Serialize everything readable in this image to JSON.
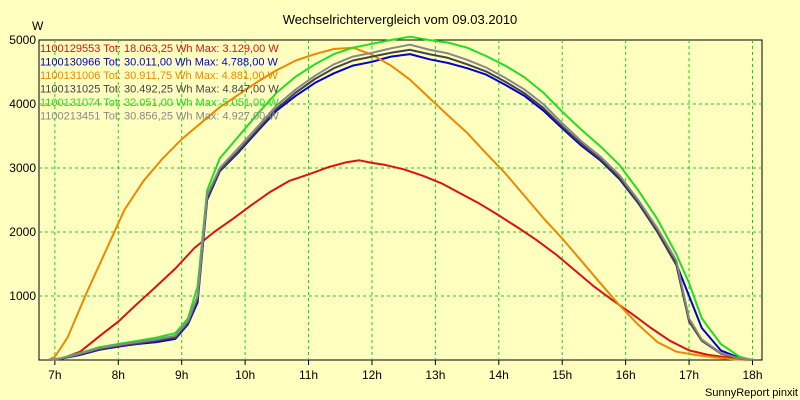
{
  "chart_data": {
    "type": "line",
    "title": "Wechselrichtervergleich vom 09.03.2010",
    "ylabel": "W",
    "xlabel": "",
    "footer": "SunnyReport pinxit",
    "xlim": [
      6.75,
      18.15
    ],
    "ylim": [
      0,
      5000
    ],
    "x_ticks": [
      7,
      8,
      9,
      10,
      11,
      12,
      13,
      14,
      15,
      16,
      17,
      18
    ],
    "x_tick_labels": [
      "7h",
      "8h",
      "9h",
      "10h",
      "11h",
      "12h",
      "13h",
      "14h",
      "15h",
      "16h",
      "17h",
      "18h"
    ],
    "y_ticks": [
      1000,
      2000,
      3000,
      4000,
      5000
    ],
    "y_tick_labels": [
      "1000",
      "2000",
      "3000",
      "4000",
      "5000"
    ],
    "grid": true,
    "legend_position": "top-left",
    "series": [
      {
        "name": "1100129553",
        "legend": "1100129553 Tot: 18.063,25 Wh Max: 3.129,00 W",
        "color": "#dd1111",
        "x": [
          6.9,
          7.1,
          7.4,
          7.7,
          8.0,
          8.3,
          8.6,
          8.9,
          9.2,
          9.5,
          9.8,
          10.1,
          10.4,
          10.7,
          11.0,
          11.3,
          11.6,
          11.8,
          12.0,
          12.2,
          12.5,
          12.8,
          13.1,
          13.4,
          13.7,
          14.0,
          14.3,
          14.6,
          14.9,
          15.2,
          15.5,
          15.8,
          16.1,
          16.4,
          16.7,
          17.0,
          17.3,
          17.6,
          17.9,
          18.0
        ],
        "y": [
          0,
          20,
          130,
          370,
          600,
          880,
          1150,
          1430,
          1750,
          1990,
          2200,
          2420,
          2630,
          2800,
          2900,
          3010,
          3090,
          3120,
          3080,
          3050,
          2980,
          2880,
          2760,
          2600,
          2440,
          2260,
          2070,
          1870,
          1650,
          1400,
          1150,
          930,
          720,
          500,
          300,
          150,
          80,
          40,
          10,
          0
        ]
      },
      {
        "name": "1100130966",
        "legend": "1100130966 Tot: 30.011,00 Wh Max: 4.788,00 W",
        "color": "#0000cc",
        "x": [
          6.9,
          7.1,
          7.4,
          7.7,
          8.0,
          8.3,
          8.6,
          8.9,
          9.1,
          9.25,
          9.4,
          9.6,
          9.9,
          10.2,
          10.5,
          10.8,
          11.1,
          11.4,
          11.7,
          12.0,
          12.3,
          12.6,
          12.9,
          13.2,
          13.5,
          13.8,
          14.1,
          14.4,
          14.7,
          15.0,
          15.3,
          15.6,
          15.9,
          16.2,
          16.5,
          16.8,
          17.0,
          17.2,
          17.5,
          17.8,
          18.0
        ],
        "y": [
          0,
          20,
          80,
          160,
          210,
          250,
          280,
          330,
          560,
          900,
          2500,
          2950,
          3250,
          3580,
          3900,
          4130,
          4330,
          4480,
          4600,
          4660,
          4740,
          4780,
          4700,
          4640,
          4560,
          4460,
          4300,
          4130,
          3900,
          3620,
          3350,
          3120,
          2830,
          2450,
          2000,
          1500,
          1000,
          500,
          150,
          30,
          0
        ]
      },
      {
        "name": "1100131006",
        "legend": "1100131006 Tot: 30.911,75 Wh Max: 4.881,00 W",
        "color": "#ee8800",
        "x": [
          6.9,
          7.0,
          7.2,
          7.5,
          7.8,
          8.1,
          8.4,
          8.7,
          9.0,
          9.3,
          9.6,
          9.9,
          10.2,
          10.5,
          10.8,
          11.1,
          11.4,
          11.7,
          12.0,
          12.3,
          12.6,
          12.9,
          13.2,
          13.5,
          13.8,
          14.1,
          14.4,
          14.7,
          15.0,
          15.3,
          15.6,
          15.9,
          16.2,
          16.5,
          16.8,
          17.1,
          17.4,
          17.7,
          18.0
        ],
        "y": [
          0,
          50,
          350,
          1050,
          1700,
          2350,
          2800,
          3150,
          3450,
          3700,
          3950,
          4150,
          4350,
          4530,
          4680,
          4780,
          4860,
          4880,
          4770,
          4600,
          4380,
          4100,
          3820,
          3550,
          3230,
          2920,
          2570,
          2220,
          1900,
          1550,
          1200,
          860,
          550,
          280,
          130,
          80,
          40,
          10,
          0
        ]
      },
      {
        "name": "1100131025",
        "legend": "1100131025 Tot: 30.492,25 Wh Max: 4.847,00 W",
        "color": "#444444",
        "x": [
          6.9,
          7.1,
          7.4,
          7.7,
          8.0,
          8.3,
          8.6,
          8.9,
          9.1,
          9.25,
          9.4,
          9.6,
          9.9,
          10.2,
          10.5,
          10.8,
          11.1,
          11.4,
          11.7,
          12.0,
          12.3,
          12.6,
          12.9,
          13.2,
          13.5,
          13.8,
          14.1,
          14.4,
          14.7,
          15.0,
          15.3,
          15.6,
          15.9,
          16.2,
          16.5,
          16.8,
          17.0,
          17.2,
          17.5,
          17.8,
          18.0
        ],
        "y": [
          0,
          20,
          90,
          170,
          220,
          260,
          300,
          350,
          580,
          950,
          2520,
          2960,
          3270,
          3600,
          3930,
          4180,
          4390,
          4560,
          4680,
          4740,
          4800,
          4847,
          4780,
          4720,
          4620,
          4510,
          4350,
          4170,
          3940,
          3650,
          3380,
          3140,
          2850,
          2460,
          2000,
          1480,
          600,
          300,
          100,
          20,
          0
        ]
      },
      {
        "name": "1100131074",
        "legend": "1100131074 Tot: 32.051,00 Wh Max: 5.051,00 W",
        "color": "#22dd22",
        "x": [
          6.9,
          7.1,
          7.4,
          7.7,
          8.0,
          8.3,
          8.6,
          8.9,
          9.1,
          9.25,
          9.4,
          9.6,
          9.9,
          10.2,
          10.5,
          10.8,
          11.1,
          11.4,
          11.7,
          12.0,
          12.3,
          12.6,
          12.9,
          13.2,
          13.5,
          13.8,
          14.1,
          14.4,
          14.7,
          15.0,
          15.3,
          15.6,
          15.9,
          16.2,
          16.5,
          16.8,
          17.0,
          17.2,
          17.5,
          17.8,
          18.0
        ],
        "y": [
          0,
          30,
          110,
          200,
          250,
          300,
          350,
          420,
          650,
          1150,
          2650,
          3150,
          3500,
          3850,
          4180,
          4430,
          4620,
          4780,
          4880,
          4940,
          5000,
          5051,
          5000,
          4960,
          4880,
          4750,
          4600,
          4420,
          4180,
          3880,
          3600,
          3340,
          3050,
          2650,
          2200,
          1650,
          1200,
          650,
          250,
          50,
          0
        ]
      },
      {
        "name": "1100213451",
        "legend": "1100213451 Tot: 30.856,25 Wh Max: 4.927,00 W",
        "color": "#888888",
        "x": [
          6.9,
          7.1,
          7.4,
          7.7,
          8.0,
          8.3,
          8.6,
          8.9,
          9.1,
          9.25,
          9.4,
          9.6,
          9.9,
          10.2,
          10.5,
          10.8,
          11.1,
          11.4,
          11.7,
          12.0,
          12.3,
          12.6,
          12.9,
          13.2,
          13.5,
          13.8,
          14.1,
          14.4,
          14.7,
          15.0,
          15.3,
          15.6,
          15.9,
          16.2,
          16.5,
          16.8,
          17.0,
          17.2,
          17.5,
          17.8,
          18.0
        ],
        "y": [
          0,
          25,
          100,
          185,
          235,
          280,
          320,
          380,
          610,
          1000,
          2580,
          3000,
          3320,
          3650,
          3980,
          4230,
          4440,
          4620,
          4740,
          4800,
          4870,
          4927,
          4850,
          4790,
          4690,
          4570,
          4410,
          4230,
          4000,
          3700,
          3420,
          3180,
          2890,
          2500,
          2060,
          1550,
          650,
          320,
          110,
          25,
          0
        ]
      }
    ]
  }
}
